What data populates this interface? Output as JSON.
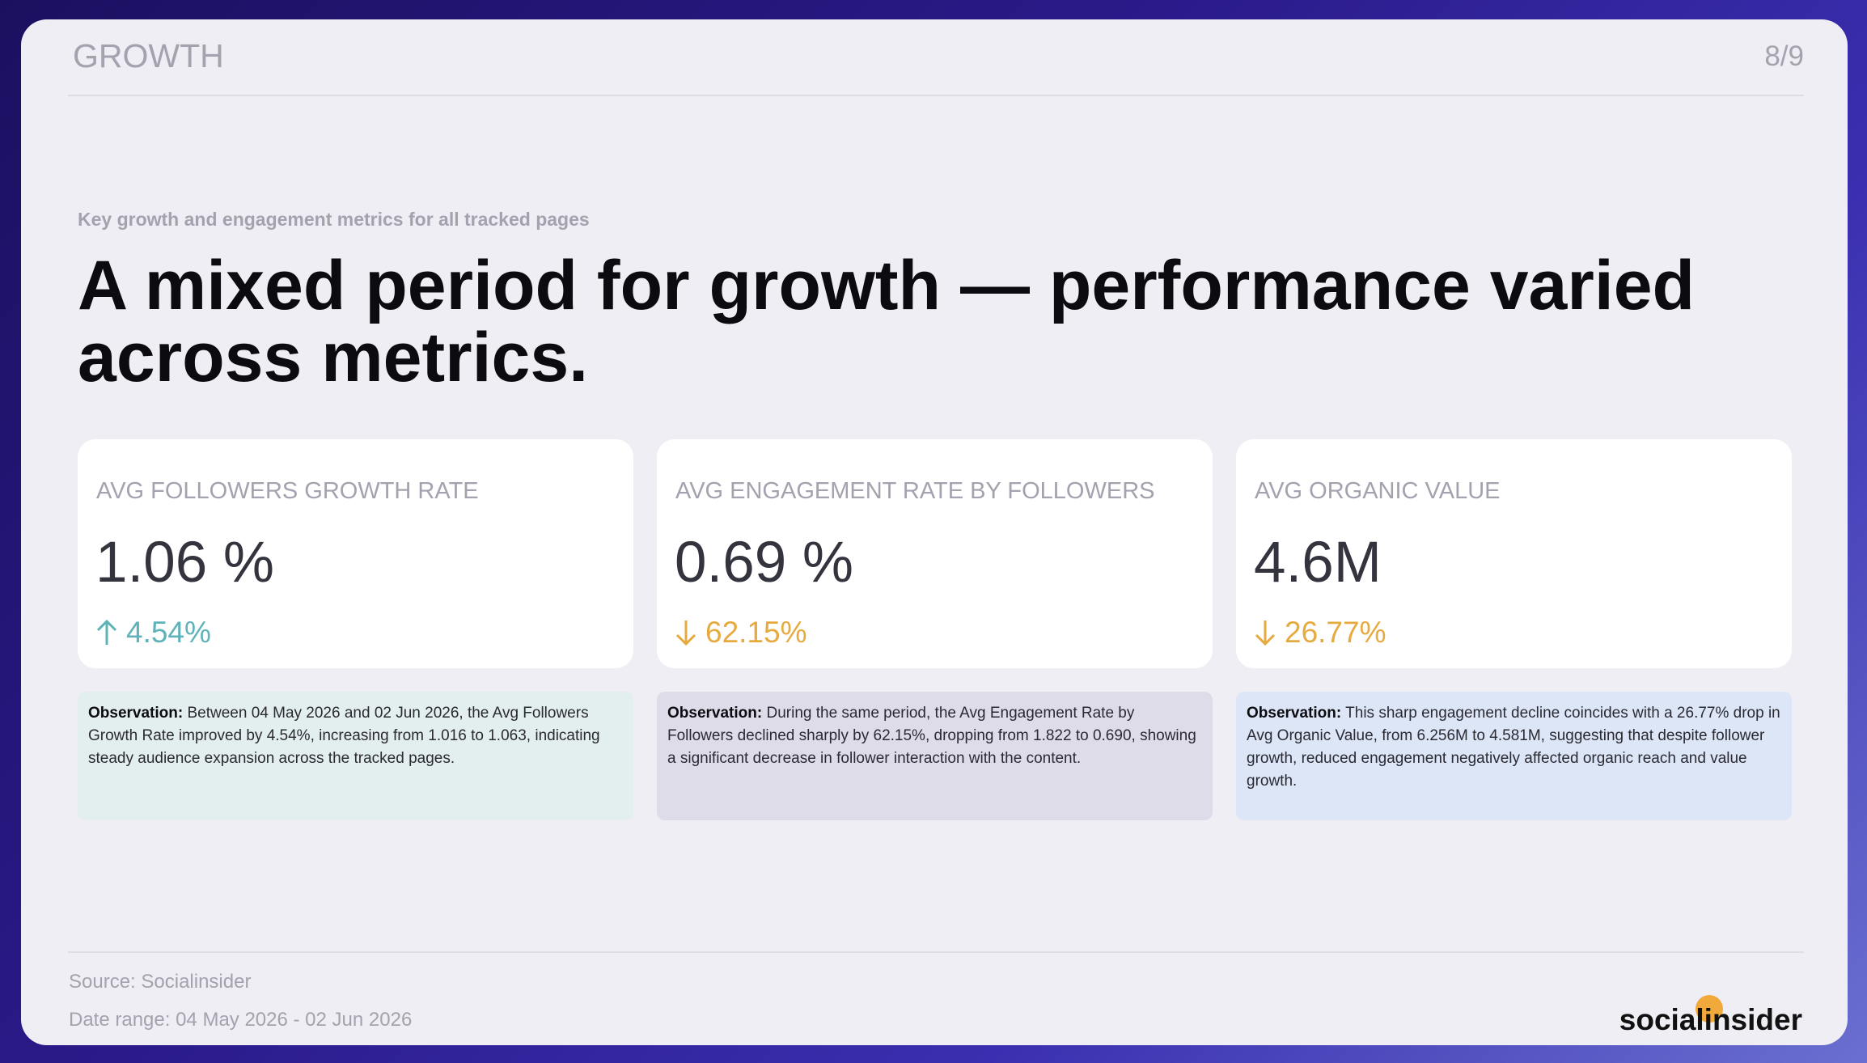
{
  "header": {
    "section": "GROWTH",
    "page": "8/9"
  },
  "subtitle": "Key growth and engagement metrics for all tracked pages",
  "headline": "A mixed period for growth — performance varied across metrics.",
  "cards": [
    {
      "label": "AVG FOLLOWERS GROWTH RATE",
      "value": "1.06 %",
      "change": "4.54%"
    },
    {
      "label": "AVG ENGAGEMENT RATE BY FOLLOWERS",
      "value": "0.69 %",
      "change": "62.15%"
    },
    {
      "label": "AVG ORGANIC VALUE",
      "value": "4.6M",
      "change": "26.77%"
    }
  ],
  "observations": [
    {
      "label": "Observation:",
      "text": "Between 04 May 2026 and 02 Jun 2026, the Avg Followers Growth Rate improved by 4.54%, increasing from 1.016 to 1.063, indicating steady audience expansion across the tracked pages."
    },
    {
      "label": "Observation:",
      "text": "During the same period, the Avg Engagement Rate by Followers declined sharply by 62.15%, dropping from 1.822 to 0.690, showing a significant decrease in follower interaction with the content."
    },
    {
      "label": "Observation:",
      "text": "This sharp engagement decline coincides with a 26.77% drop in Avg Organic Value, from 6.256M to 4.581M, suggesting that despite follower growth, reduced engagement negatively affected organic reach and value growth."
    }
  ],
  "footer": {
    "source": "Source: Socialinsider",
    "date_range": "Date range: 04 May 2026 - 02 Jun 2026",
    "logo": "socialinsider"
  }
}
